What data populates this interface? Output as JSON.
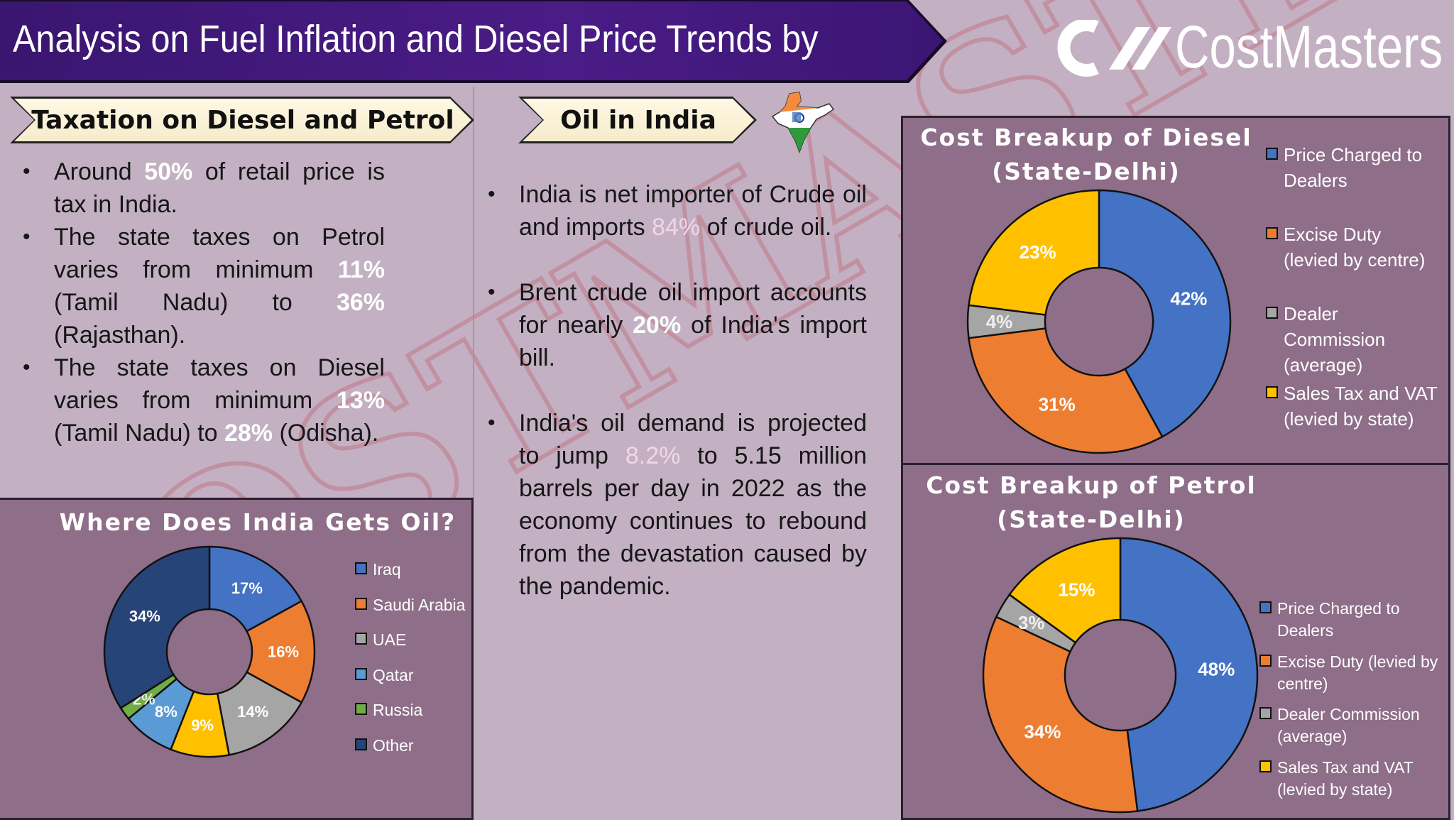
{
  "header": {
    "title": "Analysis on Fuel Inflation and Diesel Price Trends by",
    "logo_text": "CostMasters",
    "watermark": "COSTMASTERS"
  },
  "taxation": {
    "heading": "Taxation on Diesel and Petrol",
    "bullets": [
      [
        {
          "t": "Around "
        },
        {
          "t": "50%",
          "hl": "white"
        },
        {
          "t": " of  retail price is tax in India."
        }
      ],
      [
        {
          "t": "The state taxes on Petrol varies from minimum "
        },
        {
          "t": "11%",
          "hl": "white"
        },
        {
          "t": " (Tamil Nadu) to "
        },
        {
          "t": "36%",
          "hl": "white"
        },
        {
          "t": " (Rajasthan)."
        }
      ],
      [
        {
          "t": "The state taxes on Diesel varies from minimum "
        },
        {
          "t": "13%",
          "hl": "white"
        },
        {
          "t": " (Tamil Nadu) to "
        },
        {
          "t": "28%",
          "hl": "white"
        },
        {
          "t": " (Odisha)."
        }
      ]
    ]
  },
  "oil_india": {
    "heading": "Oil in India",
    "icon": "india-map-flag-icon",
    "bullets": [
      [
        {
          "t": "India is net importer of Crude oil and  imports "
        },
        {
          "t": "84%",
          "hl": "pink"
        },
        {
          "t": " of crude oil."
        }
      ],
      [
        {
          "t": "Brent crude oil import accounts for nearly "
        },
        {
          "t": "20%",
          "hl": "white"
        },
        {
          "t": " of India's import bill."
        }
      ],
      [
        {
          "t": "India's oil demand is projected to jump "
        },
        {
          "t": "8.2%",
          "hl": "pink"
        },
        {
          "t": " to 5.15 million barrels per day in 2022 as the economy continues to rebound from the devastation caused by the pandemic."
        }
      ]
    ]
  },
  "chart_data": [
    {
      "id": "sources",
      "type": "pie",
      "donut": true,
      "title": "Where Does India Gets Oil?",
      "legend": "right",
      "slices": [
        {
          "name": "Iraq",
          "value": 17,
          "label": "17%",
          "color": "#4472c4"
        },
        {
          "name": "Saudi Arabia",
          "value": 16,
          "label": "16%",
          "color": "#ed7d31"
        },
        {
          "name": "UAE",
          "value": 14,
          "label": "14%",
          "color": "#a5a5a5"
        },
        {
          "value": 9,
          "label": "9%",
          "color": "#ffc000"
        },
        {
          "name": "Qatar",
          "value": 8,
          "label": "8%",
          "color": "#5b9bd5"
        },
        {
          "name": "Russia",
          "value": 2,
          "label": "2%",
          "color": "#70ad47"
        },
        {
          "name": "Other",
          "value": 34,
          "label": "34%",
          "color": "#264478"
        }
      ]
    },
    {
      "id": "diesel",
      "type": "pie",
      "donut": true,
      "title": "Cost Breakup of Diesel (State-Delhi)",
      "legend": "right",
      "slices": [
        {
          "name": "Price Charged to Dealers",
          "value": 42,
          "label": "42%",
          "color": "#4472c4"
        },
        {
          "name": "Excise Duty (levied by centre)",
          "value": 31,
          "label": "31%",
          "color": "#ed7d31"
        },
        {
          "name": "Dealer Commission (average)",
          "value": 4,
          "label": "4%",
          "color": "#a5a5a5"
        },
        {
          "name": "Sales Tax and VAT (levied by state)",
          "value": 23,
          "label": "23%",
          "color": "#ffc000"
        }
      ]
    },
    {
      "id": "petrol",
      "type": "pie",
      "donut": true,
      "title": "Cost Breakup of Petrol (State-Delhi)",
      "legend": "right",
      "slices": [
        {
          "name": "Price Charged to Dealers",
          "value": 48,
          "label": "48%",
          "color": "#4472c4"
        },
        {
          "name": "Excise Duty (levied by centre)",
          "value": 34,
          "label": "34%",
          "color": "#ed7d31"
        },
        {
          "name": "Dealer Commission (average)",
          "value": 3,
          "label": "3%",
          "color": "#a5a5a5"
        },
        {
          "name": "Sales Tax and VAT (levied by state)",
          "value": 15,
          "label": "15%",
          "color": "#ffc000"
        }
      ]
    }
  ],
  "titles": {
    "sources": [
      "Where Does India Gets Oil?"
    ],
    "diesel": [
      "Cost Breakup of Diesel",
      "(State-Delhi)"
    ],
    "petrol": [
      "Cost Breakup of Petrol",
      "(State-Delhi)"
    ]
  },
  "legends": {
    "sources": [
      [
        "Iraq"
      ],
      [
        "Saudi Arabia"
      ],
      [
        "UAE"
      ],
      [
        "Qatar"
      ],
      [
        "Russia"
      ],
      [
        "Other"
      ]
    ],
    "diesel": [
      [
        "Price Charged to",
        "Dealers"
      ],
      [
        "Excise Duty",
        "(levied by centre)"
      ],
      [
        "Dealer",
        "Commission",
        "(average)"
      ],
      [
        "Sales Tax and VAT",
        "(levied by state)"
      ]
    ],
    "petrol": [
      [
        "Price Charged to",
        "Dealers"
      ],
      [
        "Excise Duty (levied by",
        "centre)"
      ],
      [
        "Dealer Commission",
        "(average)"
      ],
      [
        "Sales Tax and VAT",
        "(levied by state)"
      ]
    ]
  }
}
